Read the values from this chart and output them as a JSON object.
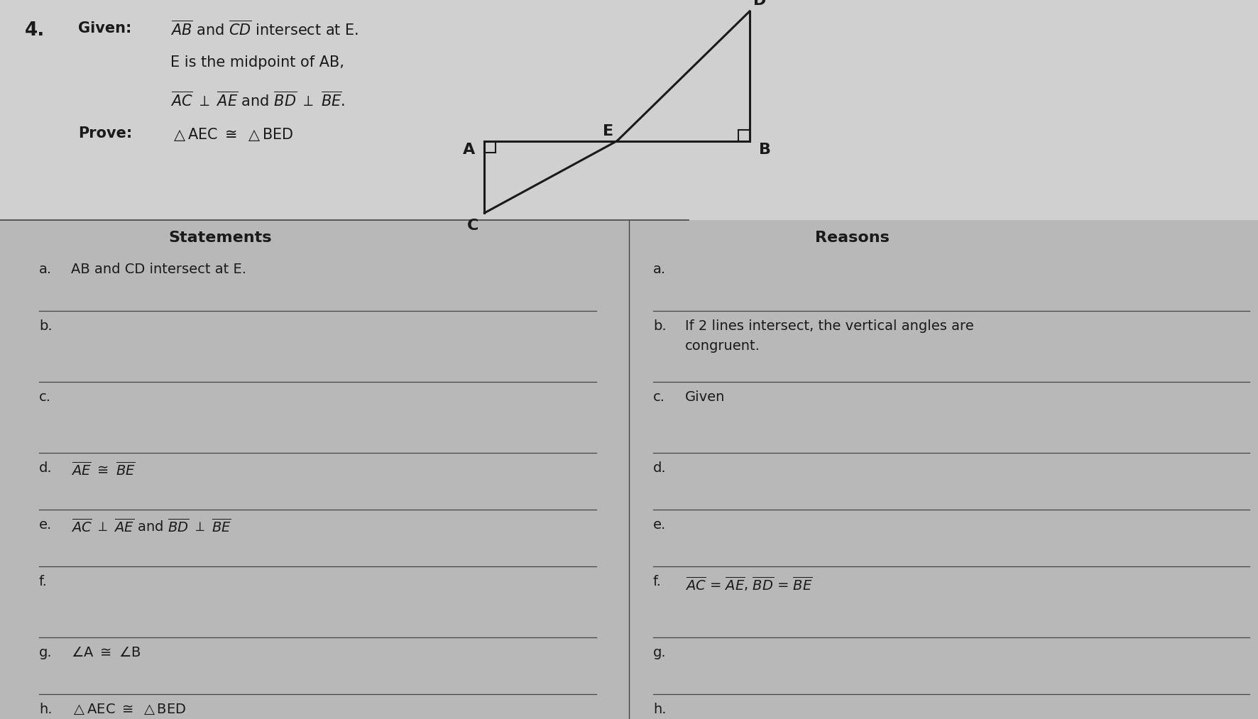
{
  "bg_color": "#b8b8b8",
  "top_bg": "#c8c8c8",
  "text_color": "#1a1a1a",
  "line_color": "#444444",
  "fig_width": 17.72,
  "fig_height": 10.13,
  "title_num": "4.",
  "given_label": "Given:",
  "prove_label": "Prove:",
  "statements_label": "Statements",
  "reasons_label": "Reasons",
  "stmt_rows": [
    {
      "label": "a.",
      "text": "AB and CD intersect at E.",
      "math": false,
      "blank": false
    },
    {
      "label": "b.",
      "text": "",
      "math": false,
      "blank": true
    },
    {
      "label": "c.",
      "text": "",
      "math": false,
      "blank": true
    },
    {
      "label": "d.",
      "text": "AE_cong_BE",
      "math": true,
      "blank": false
    },
    {
      "label": "e.",
      "text": "AC_perp_AE_BD_perp_BE",
      "math": true,
      "blank": false
    },
    {
      "label": "f.",
      "text": "",
      "math": false,
      "blank": true
    },
    {
      "label": "g.",
      "text": "angle_A_cong_B",
      "math": true,
      "blank": false
    },
    {
      "label": "h.",
      "text": "tri_AEC_cong_BED",
      "math": true,
      "blank": false
    }
  ],
  "rsn_rows": [
    {
      "label": "a.",
      "text": "",
      "math": false,
      "blank": true
    },
    {
      "label": "b.",
      "text": "If 2 lines intersect, the vertical angles are\ncongruent.",
      "math": false,
      "blank": false
    },
    {
      "label": "c.",
      "text": "Given",
      "math": false,
      "blank": false
    },
    {
      "label": "d.",
      "text": "",
      "math": false,
      "blank": true
    },
    {
      "label": "e.",
      "text": "",
      "math": false,
      "blank": true
    },
    {
      "label": "f.",
      "text": "AC_eq_AE_BD_eq_BE",
      "math": true,
      "blank": false
    },
    {
      "label": "g.",
      "text": "",
      "math": false,
      "blank": true
    },
    {
      "label": "h.",
      "text": "",
      "math": false,
      "blank": true
    }
  ]
}
